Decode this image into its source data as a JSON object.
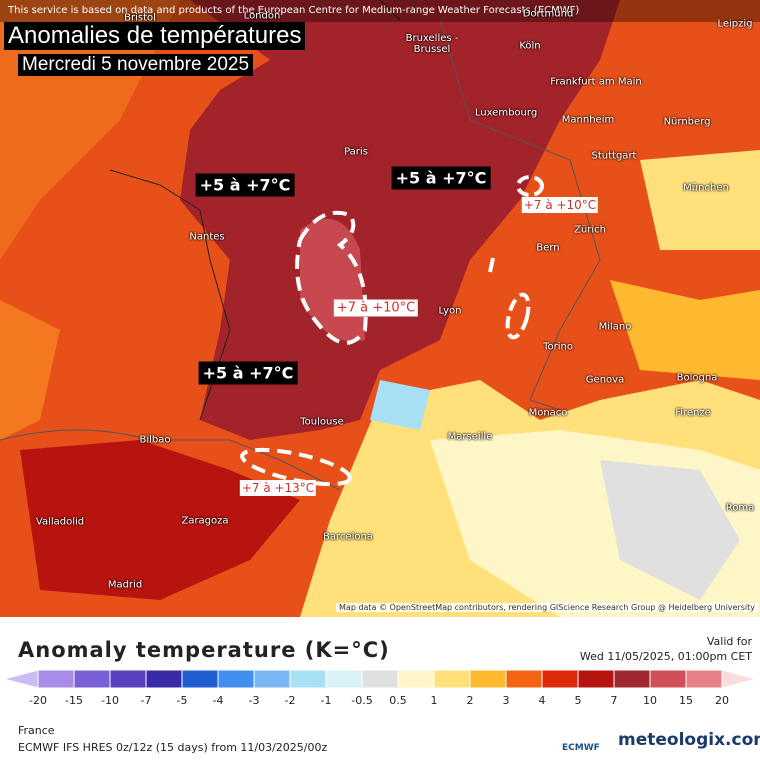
{
  "banner": "This service is based on data and products of the European Centre for Medium-range Weather Forecasts (ECMWF)",
  "map": {
    "title": "Anomalies de températures",
    "subtitle": "Mercredi 5 novembre 2025",
    "annotations": [
      "+5 à +7°C",
      "+5 à +7°C",
      "+5 à +7°C",
      "+7 à +10°C",
      "+7 à +10°C",
      "+7 à +13°C"
    ],
    "cities": [
      "Bristol",
      "London",
      "Bruxelles - Brussel",
      "Dortmund",
      "Köln",
      "Leipzig",
      "Frankfurt am Main",
      "Luxembourg",
      "Mannheim",
      "Nürnberg",
      "Paris",
      "Stuttgart",
      "München",
      "Nantes",
      "Zürich",
      "Bern",
      "Lyon",
      "Milano",
      "Torino",
      "Genova",
      "Bologna",
      "Monaco",
      "Firenze",
      "Toulouse",
      "Marseille",
      "Bilbao",
      "Valladolid",
      "Zaragoza",
      "Barcelona",
      "Madrid",
      "Roma"
    ],
    "attribution": "Map data © OpenStreetMap contributors, rendering GIScience Research Group @ Heidelberg University"
  },
  "legend": {
    "title": "Anomaly temperature (K=°C)",
    "valid_label": "Valid for",
    "valid_time": "Wed 11/05/2025, 01:00pm CET",
    "ticks": [
      -20,
      -15,
      -10,
      -7,
      -5,
      -4,
      -3,
      -2,
      -1,
      -0.5,
      0.5,
      1,
      2,
      3,
      4,
      5,
      7,
      10,
      15,
      20
    ],
    "colors": [
      "#cbbdf3",
      "#a98be8",
      "#7b5fd6",
      "#5a3fc0",
      "#3a2aa8",
      "#1f5fd0",
      "#3f8ef0",
      "#7ab8f5",
      "#a8e0f5",
      "#d9f2f8",
      "#e0e0e0",
      "#fff6c8",
      "#ffe07a",
      "#ffb930",
      "#f36512",
      "#dc2a0a",
      "#b8140f",
      "#a02830",
      "#cf5058",
      "#e88088",
      "#f7b0b0",
      "#fadcdc"
    ]
  },
  "footer": {
    "region": "France",
    "model": "ECMWF IFS HRES 0z/12z (15 days) from 11/03/2025/00z",
    "logo": "ECMWF",
    "brand": "meteologix.com"
  }
}
